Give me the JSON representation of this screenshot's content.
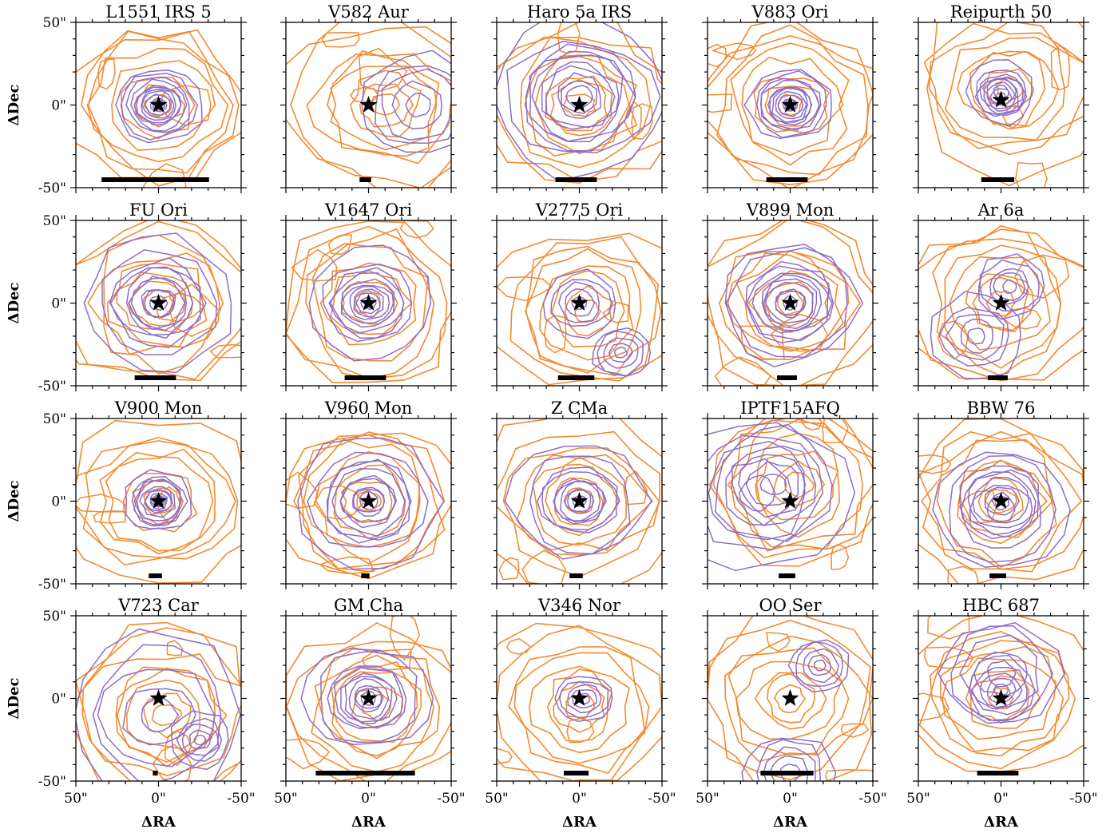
{
  "colors": {
    "orange": "#f28a30",
    "purple": "#8e6dc6",
    "frame": "#000000"
  },
  "chart_data": {
    "type": "contour",
    "xlabel": "ΔRA",
    "ylabel": "ΔDec",
    "xlim": [
      50,
      -50
    ],
    "ylim": [
      -50,
      50
    ],
    "x_ticks": [
      "50\"",
      "0\"",
      "-50\""
    ],
    "y_ticks": [
      "50\"",
      "0\"",
      "-50\""
    ],
    "panels": [
      {
        "title": "L1551 IRS 5",
        "star": [
          0,
          0
        ],
        "scalebar_arcsec": 65,
        "purple": [
          [
            0,
            0,
            10,
            2
          ],
          [
            0,
            0,
            15,
            3
          ]
        ],
        "orange_center": [
          0,
          0
        ]
      },
      {
        "title": "V582 Aur",
        "star": [
          0,
          0
        ],
        "scalebar_arcsec": 7,
        "purple": [
          [
            -30,
            0,
            20,
            2
          ]
        ],
        "orange_center": [
          -10,
          0
        ]
      },
      {
        "title": "Haro 5a IRS",
        "star": [
          0,
          0
        ],
        "scalebar_arcsec": 25,
        "purple": [
          [
            0,
            5,
            20,
            2
          ],
          [
            0,
            5,
            30,
            2
          ]
        ],
        "orange_center": [
          0,
          0
        ]
      },
      {
        "title": "V883 Ori",
        "star": [
          0,
          0
        ],
        "scalebar_arcsec": 25,
        "purple": [
          [
            0,
            0,
            10,
            2
          ],
          [
            0,
            0,
            15,
            3
          ]
        ],
        "orange_center": [
          0,
          0
        ]
      },
      {
        "title": "Reipurth 50",
        "star": [
          0,
          3
        ],
        "scalebar_arcsec": 20,
        "purple": [
          [
            0,
            5,
            8,
            2
          ],
          [
            0,
            8,
            12,
            2
          ]
        ],
        "orange_center": [
          -5,
          10
        ]
      },
      {
        "title": "FU Ori",
        "star": [
          0,
          0
        ],
        "scalebar_arcsec": 25,
        "purple": [
          [
            0,
            0,
            15,
            2
          ],
          [
            0,
            0,
            25,
            2
          ]
        ],
        "orange_center": [
          0,
          0
        ]
      },
      {
        "title": "V1647 Ori",
        "star": [
          0,
          0
        ],
        "scalebar_arcsec": 25,
        "purple": [
          [
            0,
            0,
            12,
            2
          ],
          [
            0,
            0,
            20,
            2
          ]
        ],
        "orange_center": [
          0,
          0
        ]
      },
      {
        "title": "V2775 Ori",
        "star": [
          0,
          0
        ],
        "scalebar_arcsec": 22,
        "purple": [
          [
            0,
            0,
            12,
            2
          ],
          [
            -25,
            -30,
            10,
            2
          ]
        ],
        "orange_center": [
          -5,
          -5
        ]
      },
      {
        "title": "V899 Mon",
        "star": [
          0,
          0
        ],
        "scalebar_arcsec": 12,
        "purple": [
          [
            0,
            0,
            15,
            3
          ],
          [
            0,
            0,
            25,
            2
          ]
        ],
        "orange_center": [
          0,
          0
        ]
      },
      {
        "title": "Ar 6a",
        "star": [
          0,
          0
        ],
        "scalebar_arcsec": 12,
        "purple": [
          [
            15,
            -20,
            15,
            2
          ],
          [
            -5,
            10,
            12,
            2
          ]
        ],
        "orange_center": [
          0,
          0
        ]
      },
      {
        "title": "V900 Mon",
        "star": [
          0,
          0
        ],
        "scalebar_arcsec": 8,
        "purple": [
          [
            0,
            0,
            8,
            2
          ],
          [
            0,
            0,
            12,
            2
          ]
        ],
        "orange_center": [
          0,
          0
        ]
      },
      {
        "title": "V960 Mon",
        "star": [
          0,
          0
        ],
        "scalebar_arcsec": 5,
        "purple": [
          [
            0,
            0,
            15,
            2
          ],
          [
            0,
            0,
            25,
            2
          ]
        ],
        "orange_center": [
          0,
          0
        ]
      },
      {
        "title": "Z CMa",
        "star": [
          0,
          0
        ],
        "scalebar_arcsec": 8,
        "purple": [
          [
            0,
            0,
            12,
            2
          ],
          [
            0,
            0,
            22,
            2
          ]
        ],
        "orange_center": [
          0,
          0
        ]
      },
      {
        "title": "IPTF15AFQ",
        "star": [
          0,
          0
        ],
        "scalebar_arcsec": 10,
        "purple": [
          [
            10,
            10,
            20,
            2
          ],
          [
            20,
            5,
            30,
            2
          ]
        ],
        "orange_center": [
          -5,
          10
        ]
      },
      {
        "title": "BBW 76",
        "star": [
          0,
          0
        ],
        "scalebar_arcsec": 10,
        "purple": [
          [
            0,
            0,
            15,
            2
          ],
          [
            0,
            -5,
            25,
            2
          ]
        ],
        "orange_center": [
          0,
          0
        ]
      },
      {
        "title": "V723 Car",
        "star": [
          0,
          0
        ],
        "scalebar_arcsec": 3,
        "purple": [
          [
            -25,
            -25,
            10,
            2
          ],
          [
            0,
            -10,
            30,
            2
          ]
        ],
        "orange_center": [
          -5,
          -10
        ]
      },
      {
        "title": "GM Cha",
        "star": [
          0,
          0
        ],
        "scalebar_arcsec": 60,
        "purple": [
          [
            0,
            0,
            12,
            2
          ],
          [
            0,
            0,
            22,
            2
          ]
        ],
        "orange_center": [
          -5,
          -5
        ]
      },
      {
        "title": "V346 Nor",
        "star": [
          0,
          0
        ],
        "scalebar_arcsec": 15,
        "purple": [
          [
            -3,
            0,
            10,
            2
          ]
        ],
        "orange_center": [
          0,
          -5
        ]
      },
      {
        "title": "OO Ser",
        "star": [
          0,
          0
        ],
        "scalebar_arcsec": 32,
        "purple": [
          [
            -18,
            20,
            10,
            2
          ],
          [
            0,
            -45,
            15,
            2
          ]
        ],
        "orange_center": [
          0,
          0
        ]
      },
      {
        "title": "HBC 687",
        "star": [
          0,
          0
        ],
        "scalebar_arcsec": 25,
        "purple": [
          [
            0,
            5,
            12,
            2
          ],
          [
            0,
            15,
            22,
            2
          ]
        ],
        "orange_center": [
          0,
          0
        ]
      }
    ]
  }
}
